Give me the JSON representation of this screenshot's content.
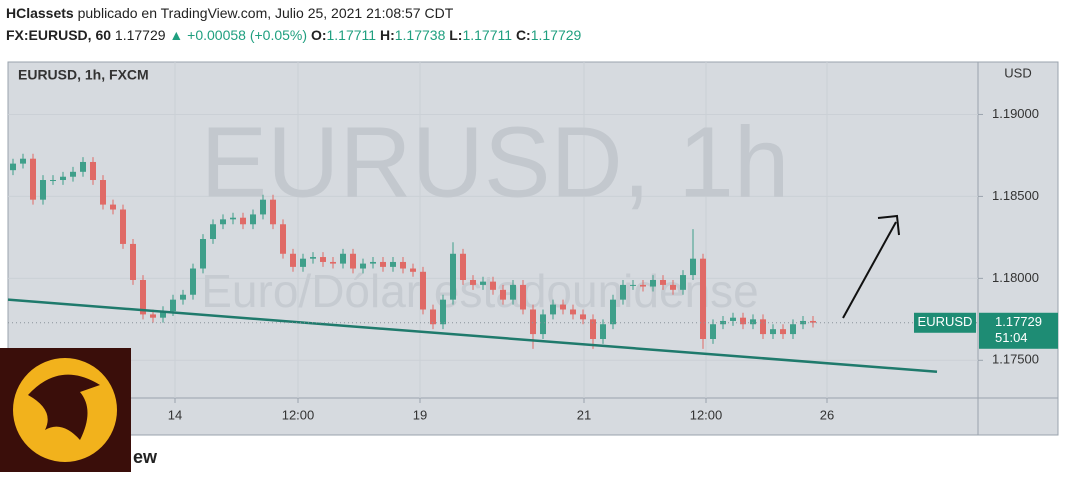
{
  "header": {
    "author": "HClassets",
    "published": "publicado en TradingView.com, Julio 25, 2021 21:08:57 CDT",
    "symbol": "FX:EURUSD, 60",
    "price": "1.17729",
    "change": "▲ +0.00058 (+0.05%)",
    "o_label": "O:",
    "o": "1.17711",
    "h_label": "H:",
    "h": "1.17738",
    "l_label": "L:",
    "l": "1.17711",
    "c_label": "C:",
    "c": "1.17729"
  },
  "footer": {
    "brand": "ew"
  },
  "chart_data": {
    "type": "candlestick",
    "title": "EURUSD, 1h, FXCM",
    "watermark": "EURUSD, 1h",
    "watermark_sub": "Euro/Dólar estadounidense",
    "y_label": "USD",
    "up_color": "#3f9f8a",
    "down_color": "#e06a66",
    "open": [
      1.1866,
      1.187,
      1.1873,
      1.1848,
      1.186,
      1.186,
      1.1862,
      1.1865,
      1.1871,
      1.186,
      1.1845,
      1.1842,
      1.1821,
      1.1799,
      1.1778,
      1.1776,
      1.178,
      1.1787,
      1.179,
      1.1806,
      1.1824,
      1.1833,
      1.1836,
      1.1837,
      1.1833,
      1.1839,
      1.1848,
      1.1833,
      1.1815,
      1.1807,
      1.1812,
      1.1813,
      1.181,
      1.1809,
      1.1815,
      1.1806,
      1.1809,
      1.181,
      1.1807,
      1.181,
      1.1806,
      1.1804,
      1.1781,
      1.1772,
      1.1787,
      1.1815,
      1.1799,
      1.1796,
      1.1798,
      1.1793,
      1.1787,
      1.1796,
      1.1781,
      1.1766,
      1.1778,
      1.1784,
      1.1781,
      1.1778,
      1.1775,
      1.1763,
      1.1772,
      1.1787,
      1.1796,
      1.1796,
      1.1795,
      1.1799,
      1.1796,
      1.1793,
      1.1802,
      1.1812,
      1.1763,
      1.1772,
      1.1774,
      1.1776,
      1.1772,
      1.1775,
      1.1766,
      1.1769,
      1.1766,
      1.1772,
      1.1774
    ],
    "high": [
      1.1873,
      1.1876,
      1.1876,
      1.1863,
      1.1863,
      1.1865,
      1.1868,
      1.1874,
      1.1874,
      1.1863,
      1.1848,
      1.1845,
      1.1824,
      1.1802,
      1.1781,
      1.1783,
      1.179,
      1.1793,
      1.1809,
      1.1827,
      1.1836,
      1.1839,
      1.184,
      1.184,
      1.1842,
      1.1851,
      1.1851,
      1.1836,
      1.1818,
      1.1815,
      1.1816,
      1.1816,
      1.1813,
      1.1818,
      1.1818,
      1.1812,
      1.1813,
      1.1813,
      1.1813,
      1.1813,
      1.1809,
      1.1807,
      1.1784,
      1.179,
      1.1822,
      1.1818,
      1.1802,
      1.1801,
      1.1801,
      1.1796,
      1.1799,
      1.1799,
      1.1784,
      1.1781,
      1.1787,
      1.1787,
      1.1784,
      1.1781,
      1.1778,
      1.1775,
      1.179,
      1.1799,
      1.1799,
      1.1799,
      1.1802,
      1.1802,
      1.1799,
      1.1805,
      1.183,
      1.1815,
      1.1775,
      1.1777,
      1.1779,
      1.1779,
      1.1778,
      1.1778,
      1.1772,
      1.1772,
      1.1775,
      1.1777,
      1.1777
    ],
    "low": [
      1.1863,
      1.1867,
      1.1845,
      1.1845,
      1.1857,
      1.1857,
      1.1859,
      1.1862,
      1.1857,
      1.1842,
      1.1839,
      1.1818,
      1.1796,
      1.1775,
      1.1773,
      1.1773,
      1.1777,
      1.1784,
      1.1787,
      1.1803,
      1.1821,
      1.183,
      1.1833,
      1.183,
      1.183,
      1.1836,
      1.183,
      1.1812,
      1.1804,
      1.1804,
      1.1809,
      1.1807,
      1.1806,
      1.1806,
      1.1803,
      1.1803,
      1.1806,
      1.1804,
      1.1804,
      1.1803,
      1.1801,
      1.1778,
      1.1769,
      1.1769,
      1.1784,
      1.1796,
      1.1793,
      1.1793,
      1.179,
      1.1784,
      1.1784,
      1.1778,
      1.1757,
      1.1763,
      1.1775,
      1.1778,
      1.1775,
      1.1772,
      1.1757,
      1.176,
      1.1769,
      1.1784,
      1.1793,
      1.1792,
      1.1792,
      1.1793,
      1.179,
      1.179,
      1.1799,
      1.1757,
      1.176,
      1.1769,
      1.1771,
      1.1769,
      1.1769,
      1.1763,
      1.1763,
      1.1763,
      1.1763,
      1.1769,
      1.177
    ],
    "close": [
      1.187,
      1.1873,
      1.1848,
      1.186,
      1.186,
      1.1862,
      1.1865,
      1.1871,
      1.186,
      1.1845,
      1.1842,
      1.1821,
      1.1799,
      1.1778,
      1.1776,
      1.178,
      1.1787,
      1.179,
      1.1806,
      1.1824,
      1.1833,
      1.1836,
      1.1837,
      1.1833,
      1.1839,
      1.1848,
      1.1833,
      1.1815,
      1.1807,
      1.1812,
      1.1813,
      1.181,
      1.1809,
      1.1815,
      1.1806,
      1.1809,
      1.181,
      1.1807,
      1.181,
      1.1806,
      1.1804,
      1.1781,
      1.1772,
      1.1787,
      1.1815,
      1.1799,
      1.1796,
      1.1798,
      1.1793,
      1.1787,
      1.1796,
      1.1781,
      1.1766,
      1.1778,
      1.1784,
      1.1781,
      1.1778,
      1.1775,
      1.1763,
      1.1772,
      1.1787,
      1.1796,
      1.1796,
      1.1795,
      1.1799,
      1.1796,
      1.1793,
      1.1802,
      1.1812,
      1.1763,
      1.1772,
      1.1774,
      1.1776,
      1.1772,
      1.1775,
      1.1766,
      1.1769,
      1.1766,
      1.1772,
      1.1774,
      1.1773
    ],
    "xlim": [
      -0.5,
      96.5
    ],
    "xticks": [
      {
        "value": 16.2,
        "label": "14"
      },
      {
        "value": 28.5,
        "label": "12:00"
      },
      {
        "value": 40.7,
        "label": "19"
      },
      {
        "value": 57.1,
        "label": "21"
      },
      {
        "value": 69.3,
        "label": "12:00"
      },
      {
        "value": 81.4,
        "label": "26"
      }
    ],
    "ylim": [
      1.1727,
      1.1932
    ],
    "yticks": [
      {
        "value": 1.19,
        "label": "1.19000"
      },
      {
        "value": 1.185,
        "label": "1.18500"
      },
      {
        "value": 1.18,
        "label": "1.18000"
      },
      {
        "value": 1.175,
        "label": "1.17500"
      }
    ],
    "grid": true,
    "trendline": {
      "x": [
        -0.5,
        92.4
      ],
      "y": [
        1.1787,
        1.1743
      ],
      "color": "#1f7a6c"
    },
    "last_price": 1.17729,
    "price_tag_label": "EURUSD",
    "countdown": "51:04"
  }
}
